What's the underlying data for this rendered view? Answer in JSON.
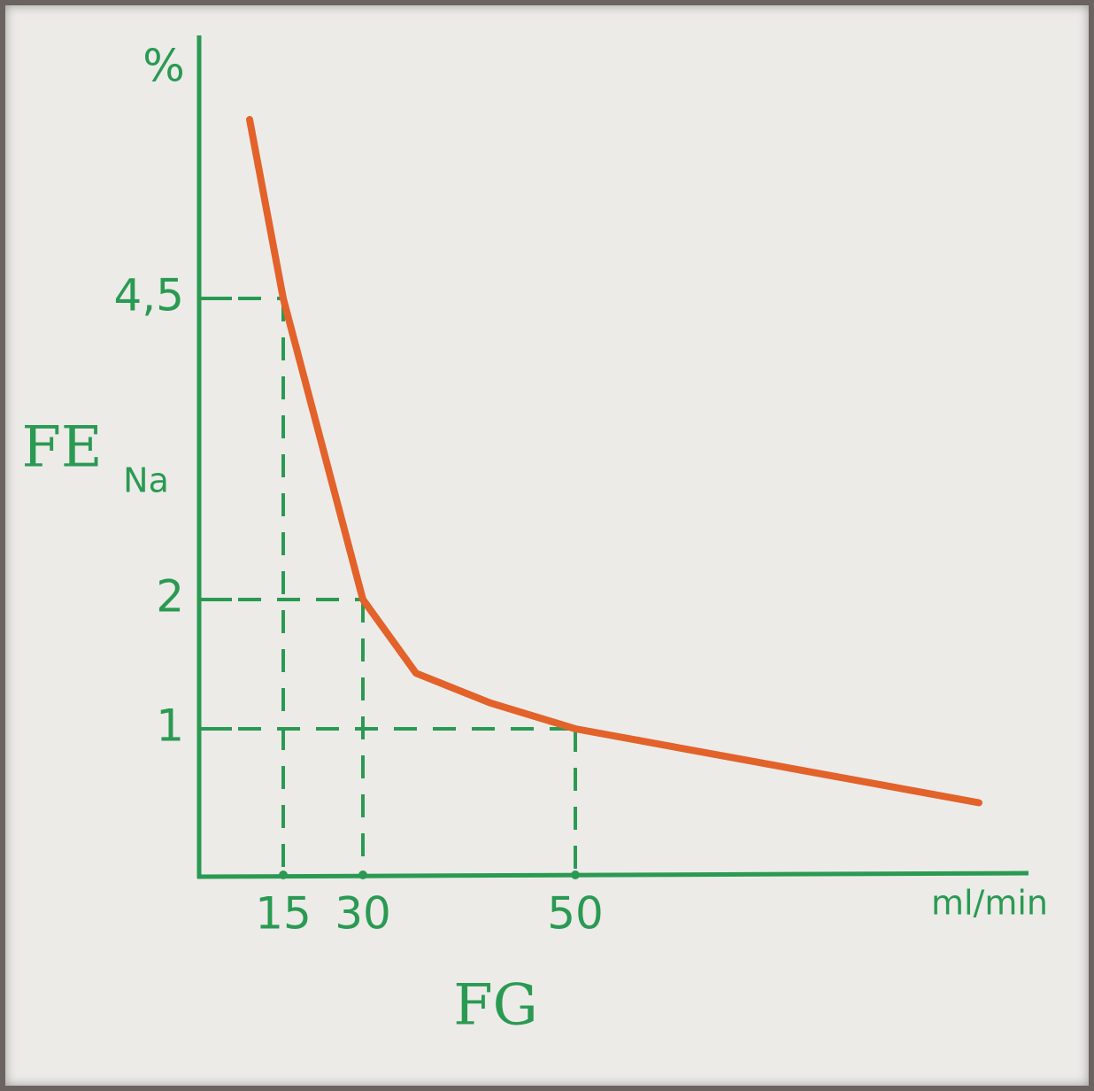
{
  "chart_data": {
    "type": "line",
    "y_unit": "%",
    "ylabel": "FE",
    "ylabel_sub": "Na",
    "xlabel": "FG",
    "x_unit": "ml/min",
    "series": [
      {
        "color": "#e2622a",
        "x": [
          9,
          15,
          30,
          35,
          42,
          50,
          88
        ],
        "values": [
          6.2,
          4.5,
          2,
          1.43,
          1.2,
          1,
          0.5
        ]
      }
    ],
    "xlim": [
      0,
      90
    ],
    "xticks": [
      15,
      30,
      50
    ],
    "ylim": [
      0,
      7
    ],
    "yticks": [
      1,
      2,
      {
        "value": 4.5,
        "label": "4,5"
      }
    ],
    "axis_color": "#2a9a52"
  }
}
